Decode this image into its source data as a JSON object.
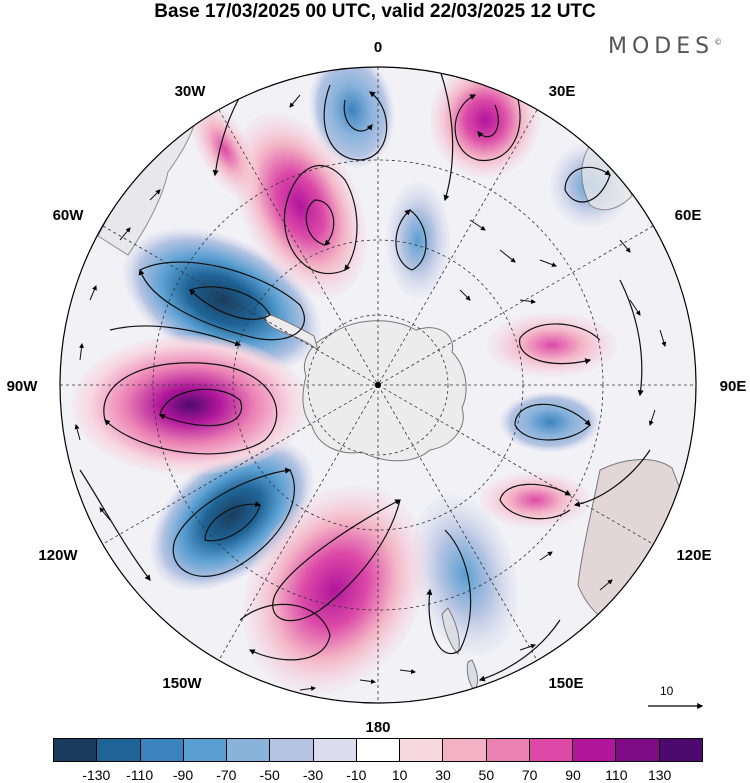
{
  "title": "Base 17/03/2025 00 UTC, valid 22/03/2025 12 UTC",
  "brand": "MODES",
  "brand_mark": "©",
  "map": {
    "projection": "south polar stereographic",
    "longitude_labels": [
      "0",
      "30E",
      "60E",
      "90E",
      "120E",
      "150E",
      "180",
      "150W",
      "120W",
      "90W",
      "60W",
      "30W"
    ],
    "reference_vector_label": "10",
    "land_color": "#ececec",
    "coast_color": "#777777",
    "grid_style": "dashed"
  },
  "colorbar": {
    "colors": [
      "#1a3c5c",
      "#1f6496",
      "#3b83bf",
      "#5a9fd2",
      "#8ab3dc",
      "#b4c3e2",
      "#dcdcee",
      "#ffffff",
      "#f7d7e0",
      "#f3b1c5",
      "#ec82b4",
      "#dc49a7",
      "#b0169b",
      "#7d0c86",
      "#4d0a6e"
    ],
    "tick_labels": [
      "-130",
      "-110",
      "-90",
      "-70",
      "-50",
      "-30",
      "-10",
      "10",
      "30",
      "50",
      "70",
      "90",
      "110",
      "130"
    ]
  }
}
